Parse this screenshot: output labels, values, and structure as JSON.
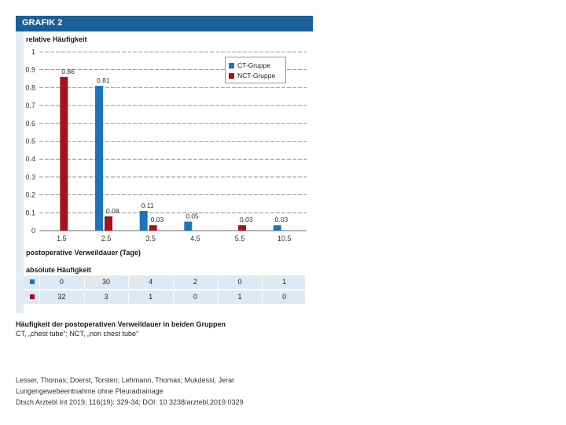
{
  "figure": {
    "label": "GRAFIK 2",
    "caption_line1": "Häufigkeit der postoperativen Verweildauer in beiden Gruppen",
    "caption_line2": "CT, „chest tube“; NCT, „non chest tube“"
  },
  "chart_data": {
    "type": "bar",
    "ylabel": "relative Häufigkeit",
    "xlabel": "postoperative Verweildauer (Tage)",
    "ylim": [
      0,
      1
    ],
    "yticks": [
      "0",
      "0.1",
      "0.2",
      "0.3",
      "0.4",
      "0.5",
      "0.6",
      "0.7",
      "0.8",
      "0.9",
      "1"
    ],
    "categories": [
      "1.5",
      "2.5",
      "3.5",
      "4.5",
      "5.5",
      "10.5"
    ],
    "series": [
      {
        "name": "CT-Gruppe",
        "color": "#1c74bb",
        "values": [
          0,
          0.81,
          0.11,
          0.05,
          0,
          0.03
        ],
        "labels": [
          "",
          "0.81",
          "0.11",
          "0.05",
          "",
          "0.03"
        ]
      },
      {
        "name": "NCT-Gruppe",
        "color": "#a3121d",
        "values": [
          0.86,
          0.08,
          0.03,
          0,
          0.03,
          0
        ],
        "labels": [
          "0.86",
          "0.08",
          "0.03",
          "",
          "0.03",
          ""
        ]
      }
    ],
    "legend_position": "top-right",
    "grid": "dashed horizontal"
  },
  "absolute": {
    "title": "absolute Häufigkeit",
    "rows": [
      {
        "color": "#1c74bb",
        "values": [
          "0",
          "30",
          "4",
          "2",
          "0",
          "1"
        ]
      },
      {
        "color": "#a3121d",
        "values": [
          "32",
          "3",
          "1",
          "0",
          "1",
          "0"
        ]
      }
    ]
  },
  "citation": {
    "authors": "Lesser, Thomas; Doerst, Torsten; Lehmann, Thomas; Mukdessi, Jerar",
    "title": "Lungengewebeentnahme ohne Pleuradrainage",
    "source": "Dtsch Arztebl Int 2019; 116(19): 329-34; DOI: 10.3238/arztebl.2019.0329"
  }
}
